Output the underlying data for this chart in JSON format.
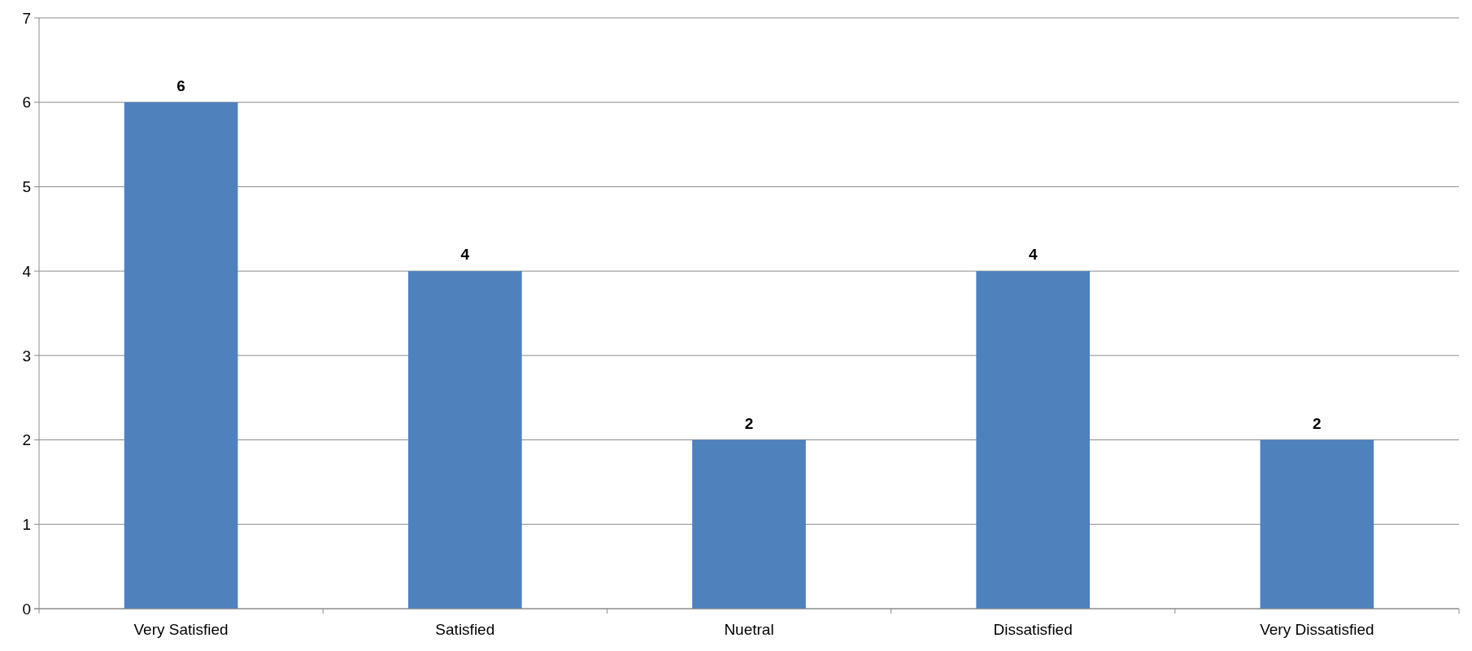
{
  "chart_data": {
    "type": "bar",
    "categories": [
      "Very Satisfied",
      "Satisfied",
      "Nuetral",
      "Dissatisfied",
      "Very Dissatisfied"
    ],
    "values": [
      6,
      4,
      2,
      4,
      2
    ],
    "color": "#4f81bd",
    "ylim": [
      0,
      7
    ],
    "yticks": [
      0,
      1,
      2,
      3,
      4,
      5,
      6,
      7
    ],
    "grid": "y",
    "data_labels": true
  }
}
